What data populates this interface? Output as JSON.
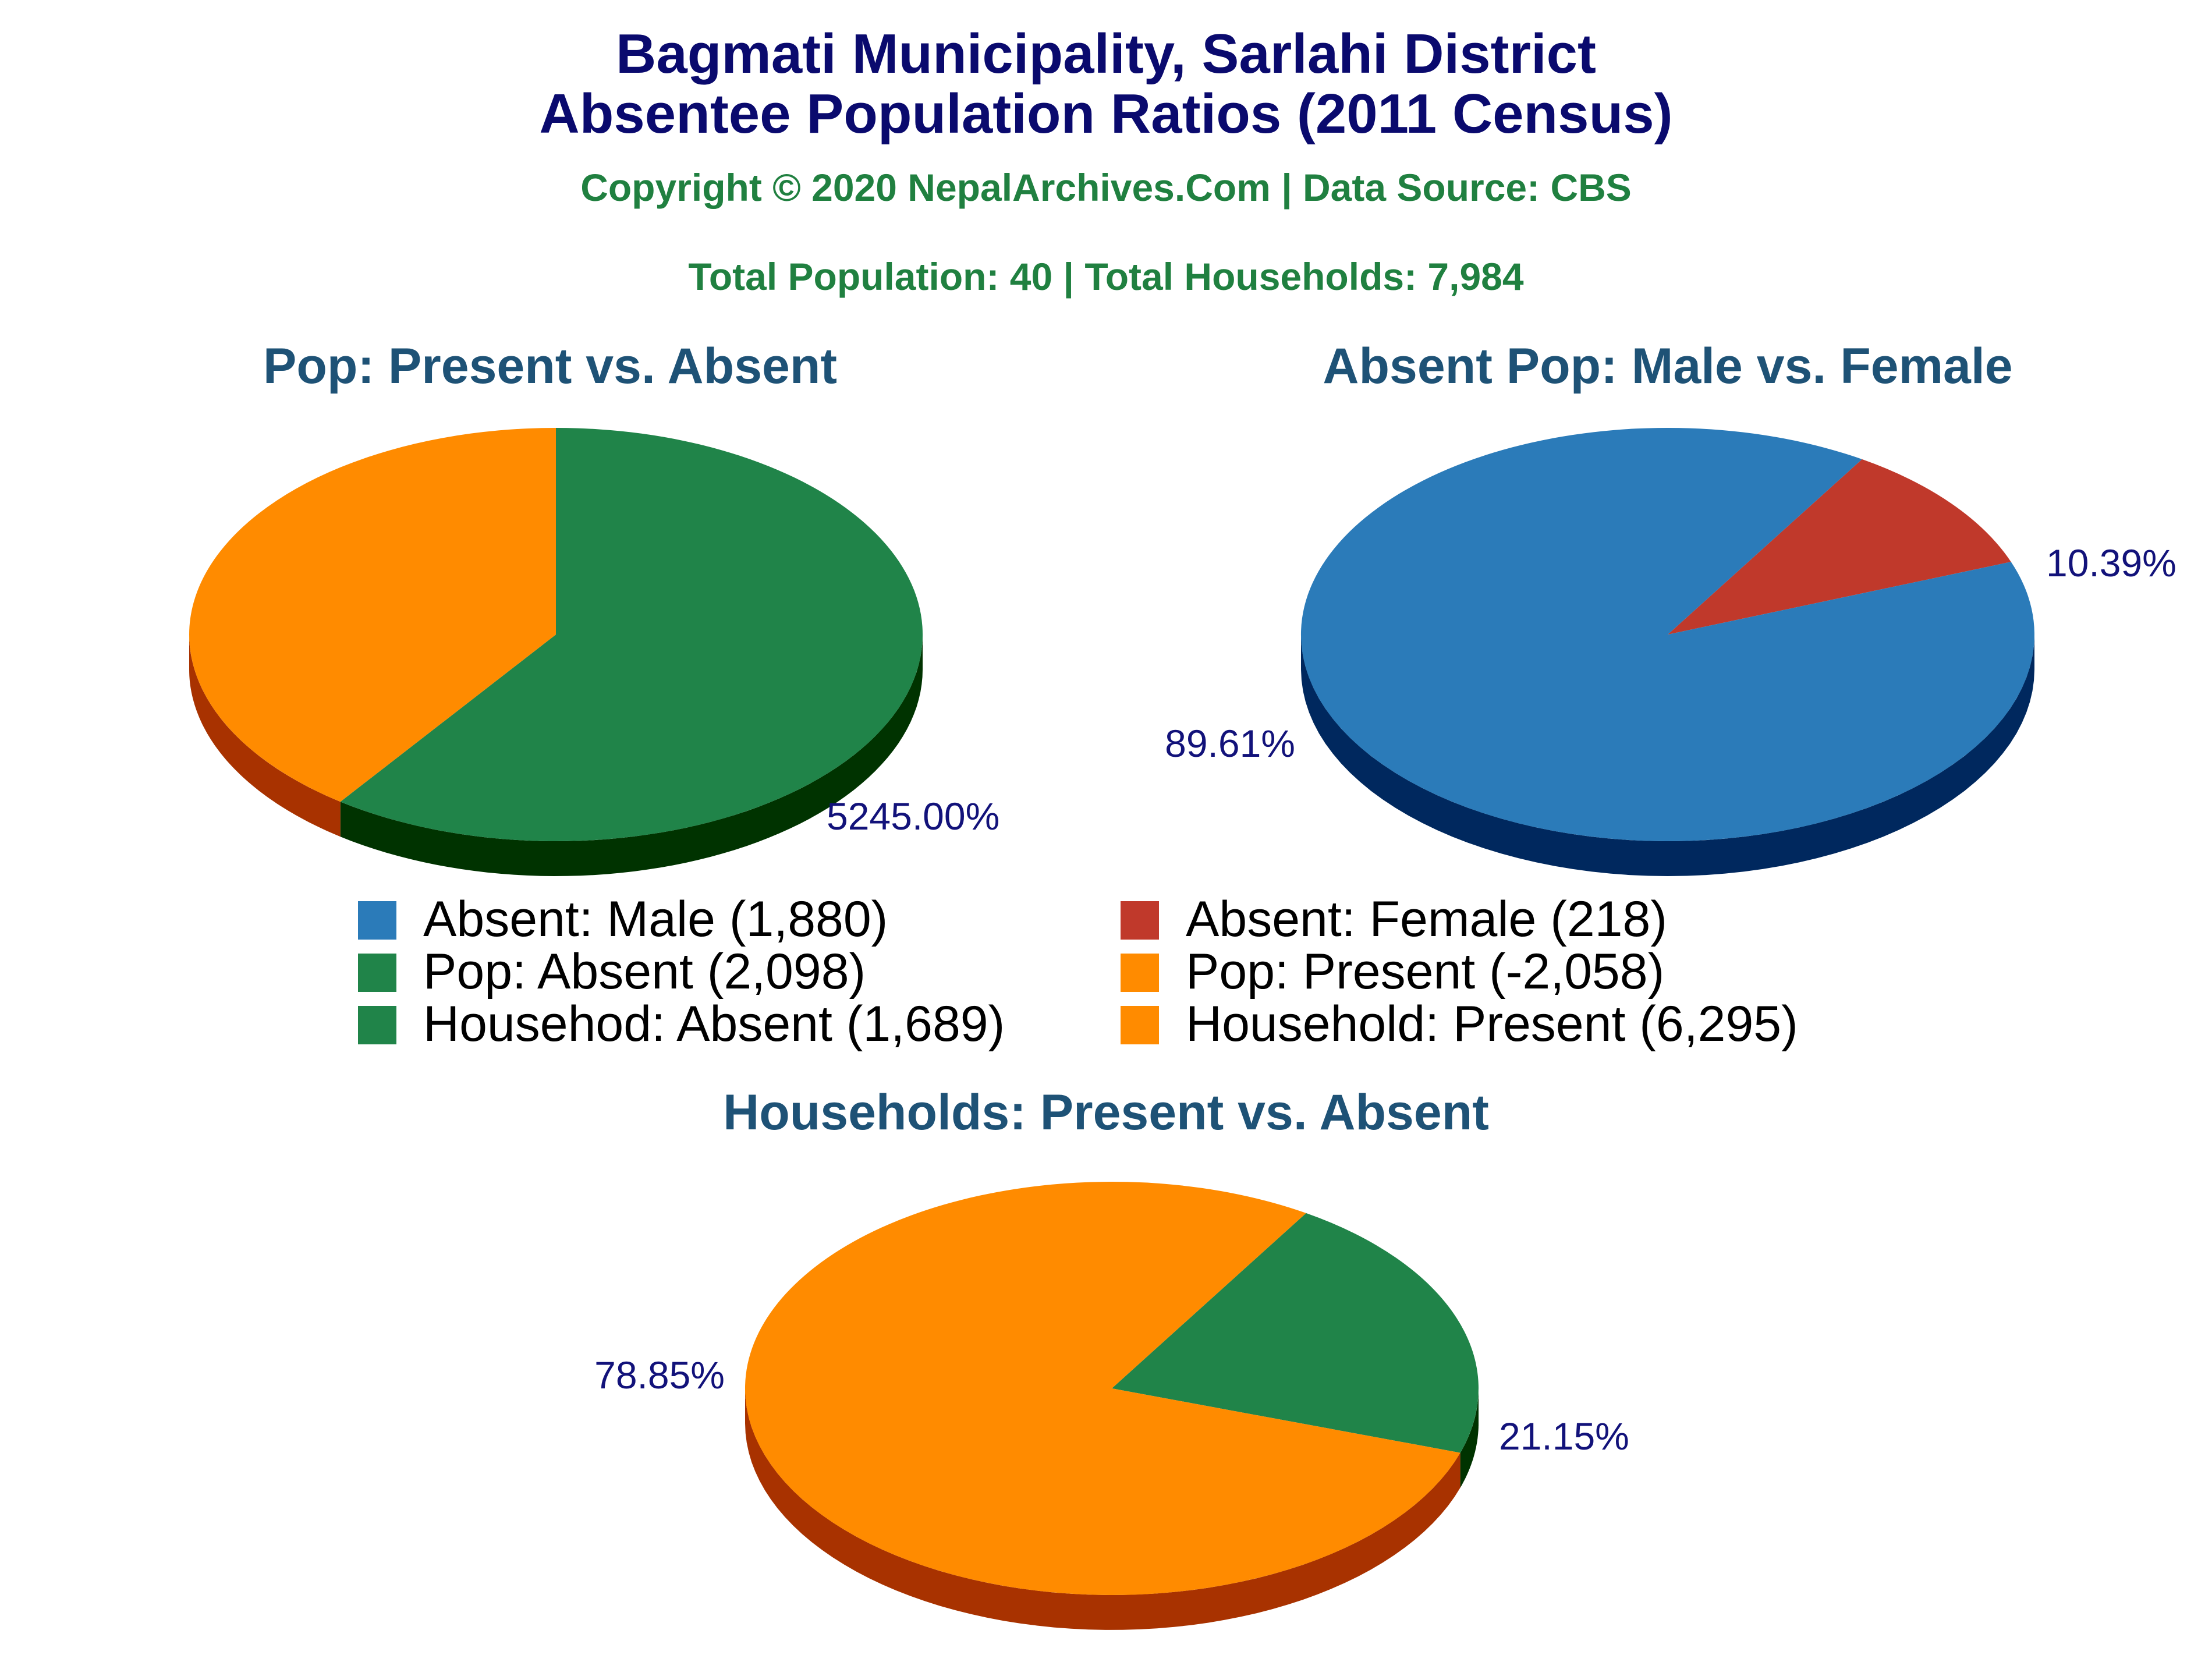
{
  "header": {
    "title_line1": "Bagmati Municipality, Sarlahi District",
    "title_line2": "Absentee Population Ratios (2011 Census)",
    "copyright": "Copyright © 2020 NepalArchives.Com | Data Source: CBS",
    "totals": "Total Population: 40 | Total Households: 7,984"
  },
  "legend": [
    {
      "label": "Absent: Male (1,880)",
      "color": "#2b7bb9"
    },
    {
      "label": "Absent: Female (218)",
      "color": "#c0392b"
    },
    {
      "label": "Pop: Absent (2,098)",
      "color": "#208449"
    },
    {
      "label": "Pop: Present (-2,058)",
      "color": "#ff8b00"
    },
    {
      "label": "Househod: Absent (1,689)",
      "color": "#208449"
    },
    {
      "label": "Household: Present (6,295)",
      "color": "#ff8b00"
    }
  ],
  "chart_data": [
    {
      "type": "pie",
      "title": "Pop: Present vs. Absent",
      "slices": [
        {
          "label": "Pop: Absent",
          "value": 2098,
          "percent_label": "5245.00%",
          "color": "#208449",
          "side_color": "#003300"
        },
        {
          "label": "Pop: Present",
          "value": -2058,
          "percent_label": "",
          "color": "#ff8b00",
          "side_color": "#a83200"
        }
      ],
      "visual_fractions": [
        0.6,
        0.4
      ]
    },
    {
      "type": "pie",
      "title": "Absent Pop: Male vs. Female",
      "slices": [
        {
          "label": "Absent: Female",
          "value": 218,
          "percent_label": "10.39%",
          "color": "#c0392b",
          "side_color": "#7a1d12"
        },
        {
          "label": "Absent: Male",
          "value": 1880,
          "percent_label": "89.61%",
          "color": "#2b7bb9",
          "side_color": "#00285e"
        }
      ]
    },
    {
      "type": "pie",
      "title": "Households: Present vs. Absent",
      "slices": [
        {
          "label": "Househod: Absent",
          "value": 1689,
          "percent_label": "21.15%",
          "color": "#208449",
          "side_color": "#003300"
        },
        {
          "label": "Household: Present",
          "value": 6295,
          "percent_label": "78.85%",
          "color": "#ff8b00",
          "side_color": "#a83200"
        }
      ]
    }
  ]
}
